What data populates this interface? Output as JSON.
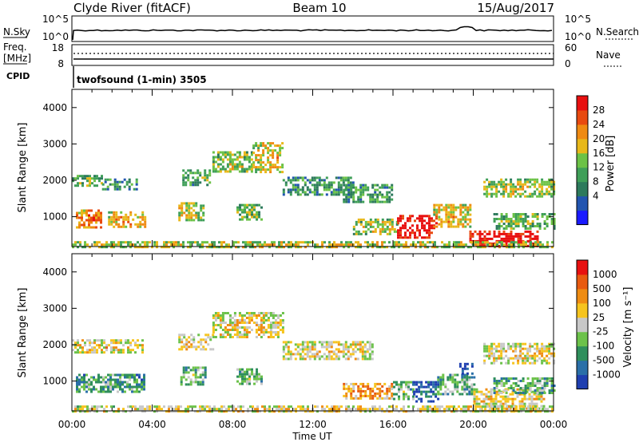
{
  "header": {
    "station": "Clyde River (fitACF)",
    "beam": "Beam 10",
    "date": "15/Aug/2017"
  },
  "nsky_panel": {
    "left_label": "N.Sky",
    "right_label": "N.Search",
    "left_ticks": [
      "10^5",
      "10^0"
    ],
    "right_ticks": [
      "10^5",
      "10^0"
    ]
  },
  "freq_panel": {
    "left_label_line1": "Freq.",
    "left_label_line2": "[MHz]",
    "right_label": "Nave",
    "left_ticks": [
      "18",
      "8"
    ],
    "right_ticks": [
      "60",
      "0"
    ],
    "cpid_label": "CPID",
    "cpid_value": "twofsound (1-min) 3505"
  },
  "chart_data": [
    {
      "type": "heatmap",
      "name": "power",
      "ylabel": "Slant Range [km]",
      "ylim": [
        180,
        4500
      ],
      "yticks": [
        1000,
        2000,
        3000,
        4000
      ],
      "xlim": [
        0,
        24
      ],
      "colorbar": {
        "label": "Power [dB]",
        "ticks": [
          4,
          8,
          12,
          16,
          20,
          24,
          28
        ],
        "colors": [
          "#1a1aff",
          "#2255b0",
          "#2d7a5c",
          "#3f9f58",
          "#6cc246",
          "#e8b81a",
          "#ef8a12",
          "#e84a10",
          "#e81010"
        ]
      },
      "blobs": [
        {
          "t0": 0.0,
          "t1": 1.5,
          "r0": 1850,
          "r1": 2150,
          "level": 0.4
        },
        {
          "t0": 1.5,
          "t1": 3.2,
          "r0": 1750,
          "r1": 2050,
          "level": 0.3
        },
        {
          "t0": 0.2,
          "t1": 1.4,
          "r0": 700,
          "r1": 1200,
          "level": 0.7
        },
        {
          "t0": 1.8,
          "t1": 3.6,
          "r0": 700,
          "r1": 1150,
          "level": 0.6
        },
        {
          "t0": 5.3,
          "t1": 6.5,
          "r0": 900,
          "r1": 1400,
          "level": 0.5
        },
        {
          "t0": 5.5,
          "t1": 6.9,
          "r0": 1900,
          "r1": 2300,
          "level": 0.35
        },
        {
          "t0": 7.0,
          "t1": 9.0,
          "r0": 2250,
          "r1": 2800,
          "level": 0.45
        },
        {
          "t0": 9.0,
          "t1": 10.5,
          "r0": 2200,
          "r1": 3050,
          "level": 0.55
        },
        {
          "t0": 8.2,
          "t1": 9.4,
          "r0": 950,
          "r1": 1350,
          "level": 0.4
        },
        {
          "t0": 10.5,
          "t1": 14.0,
          "r0": 1600,
          "r1": 2100,
          "level": 0.3
        },
        {
          "t0": 13.5,
          "t1": 16.0,
          "r0": 1400,
          "r1": 1900,
          "level": 0.3
        },
        {
          "t0": 14.0,
          "t1": 16.2,
          "r0": 550,
          "r1": 950,
          "level": 0.45
        },
        {
          "t0": 16.2,
          "t1": 18.2,
          "r0": 450,
          "r1": 1050,
          "level": 0.92
        },
        {
          "t0": 18.0,
          "t1": 19.8,
          "r0": 700,
          "r1": 1350,
          "level": 0.55
        },
        {
          "t0": 19.8,
          "t1": 23.2,
          "r0": 180,
          "r1": 620,
          "level": 0.95
        },
        {
          "t0": 20.5,
          "t1": 24.0,
          "r0": 1550,
          "r1": 2050,
          "level": 0.45
        },
        {
          "t0": 21.0,
          "t1": 24.0,
          "r0": 650,
          "r1": 1100,
          "level": 0.4
        },
        {
          "t0": 0.0,
          "t1": 24.0,
          "r0": 180,
          "r1": 330,
          "level": 0.5
        }
      ]
    },
    {
      "type": "heatmap",
      "name": "velocity",
      "ylabel": "Slant Range [km]",
      "xlabel": "Time UT",
      "ylim": [
        180,
        4500
      ],
      "yticks": [
        1000,
        2000,
        3000,
        4000
      ],
      "xlim": [
        0,
        24
      ],
      "xticks": [
        "00:00",
        "04:00",
        "08:00",
        "12:00",
        "16:00",
        "20:00",
        "00:00"
      ],
      "colorbar": {
        "label": "Velocity [m s⁻¹]",
        "ticks": [
          "1000",
          "500",
          "100",
          "25",
          "-25",
          "-100",
          "-500",
          "-1000"
        ],
        "colors": [
          "#1f3fb0",
          "#2a6fa8",
          "#2f8f5c",
          "#6cc24a",
          "#c8c8c8",
          "#f6c41e",
          "#ef8c12",
          "#e85a10",
          "#e81010"
        ]
      },
      "blobs": [
        {
          "t0": 0.0,
          "t1": 3.5,
          "r0": 1800,
          "r1": 2150,
          "level": 0.5
        },
        {
          "t0": 0.2,
          "t1": 3.6,
          "r0": 700,
          "r1": 1200,
          "level": 0.25
        },
        {
          "t0": 5.3,
          "t1": 7.0,
          "r0": 1850,
          "r1": 2300,
          "level": 0.5
        },
        {
          "t0": 7.0,
          "t1": 10.5,
          "r0": 2200,
          "r1": 2900,
          "level": 0.5
        },
        {
          "t0": 5.4,
          "t1": 6.6,
          "r0": 900,
          "r1": 1400,
          "level": 0.3
        },
        {
          "t0": 8.2,
          "t1": 9.4,
          "r0": 950,
          "r1": 1350,
          "level": 0.35
        },
        {
          "t0": 10.5,
          "t1": 15.0,
          "r0": 1600,
          "r1": 2100,
          "level": 0.5
        },
        {
          "t0": 13.5,
          "t1": 16.0,
          "r0": 550,
          "r1": 950,
          "level": 0.65
        },
        {
          "t0": 16.0,
          "t1": 17.0,
          "r0": 500,
          "r1": 1000,
          "level": 0.3
        },
        {
          "t0": 17.0,
          "t1": 18.2,
          "r0": 450,
          "r1": 1000,
          "level": 0.05
        },
        {
          "t0": 18.2,
          "t1": 20.0,
          "r0": 650,
          "r1": 1200,
          "level": 0.3
        },
        {
          "t0": 19.3,
          "t1": 20.0,
          "r0": 1200,
          "r1": 1500,
          "level": 0.05
        },
        {
          "t0": 20.0,
          "t1": 23.5,
          "r0": 200,
          "r1": 800,
          "level": 0.5
        },
        {
          "t0": 20.5,
          "t1": 24.0,
          "r0": 1500,
          "r1": 2050,
          "level": 0.5
        },
        {
          "t0": 21.0,
          "t1": 24.0,
          "r0": 700,
          "r1": 1100,
          "level": 0.3
        },
        {
          "t0": 0.0,
          "t1": 24.0,
          "r0": 180,
          "r1": 330,
          "level": 0.5
        }
      ]
    }
  ]
}
